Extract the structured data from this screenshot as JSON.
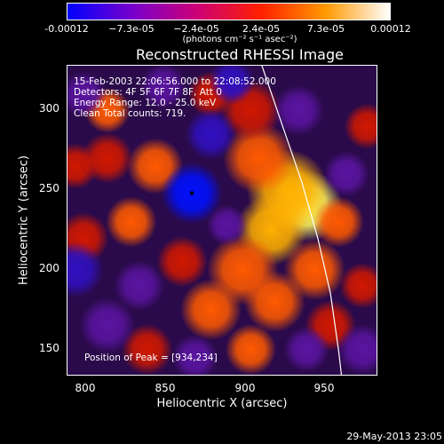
{
  "colorbar": {
    "ticks": [
      "-0.00012",
      "−7.3e-05",
      "−2.4e-05",
      "2.4e-05",
      "7.3e-05",
      "0.00012"
    ],
    "unit": "(photons cm⁻² s⁻¹ asec⁻²)",
    "colors": [
      "#0000ff",
      "#7700cc",
      "#cc0077",
      "#ff2000",
      "#ff9900",
      "#ffffff"
    ]
  },
  "info": {
    "line1": "15-Feb-2003 22:06:56.000 to 22:08:52.000",
    "line2": "Detectors: 4F 5F 6F 7F 8F, Att 0",
    "line3": "Energy Range: 12.0 - 25.0 keV",
    "line4": "Clean    Total counts: 719."
  },
  "peak": "Position of Peak = [934,234]",
  "timestamp": "29-May-2013 23:05",
  "chart_data": {
    "type": "heatmap",
    "title": "Reconstructed RHESSI Image",
    "xlabel": "Heliocentric X (arcsec)",
    "ylabel": "Heliocentric Y (arcsec)",
    "xlim": [
      790,
      985
    ],
    "ylim": [
      133,
      328
    ],
    "xticks": [
      "800",
      "850",
      "900",
      "950"
    ],
    "yticks": [
      "150",
      "200",
      "250",
      "300"
    ],
    "value_range": [
      -0.00012,
      0.00012
    ],
    "peak_position": [
      934,
      234
    ],
    "minimum_marker": [
      868,
      248
    ],
    "limb": [
      [
        912,
        328
      ],
      [
        925,
        290
      ],
      [
        937,
        255
      ],
      [
        947,
        220
      ],
      [
        955,
        185
      ],
      [
        960,
        150
      ],
      [
        962,
        133
      ]
    ],
    "blobs": [
      {
        "x": 940,
        "y": 240,
        "v": 1.0,
        "r": 14
      },
      {
        "x": 928,
        "y": 250,
        "v": 0.75,
        "r": 16
      },
      {
        "x": 918,
        "y": 225,
        "v": 0.7,
        "r": 14
      },
      {
        "x": 910,
        "y": 270,
        "v": 0.55,
        "r": 14
      },
      {
        "x": 905,
        "y": 300,
        "v": 0.4,
        "r": 12
      },
      {
        "x": 900,
        "y": 200,
        "v": 0.55,
        "r": 14
      },
      {
        "x": 920,
        "y": 180,
        "v": 0.5,
        "r": 12
      },
      {
        "x": 905,
        "y": 150,
        "v": 0.45,
        "r": 10
      },
      {
        "x": 945,
        "y": 200,
        "v": 0.55,
        "r": 12
      },
      {
        "x": 960,
        "y": 230,
        "v": 0.45,
        "r": 10
      },
      {
        "x": 955,
        "y": 165,
        "v": 0.4,
        "r": 10
      },
      {
        "x": 880,
        "y": 175,
        "v": 0.45,
        "r": 12
      },
      {
        "x": 862,
        "y": 205,
        "v": 0.4,
        "r": 10
      },
      {
        "x": 830,
        "y": 230,
        "v": 0.5,
        "r": 10
      },
      {
        "x": 845,
        "y": 265,
        "v": 0.45,
        "r": 11
      },
      {
        "x": 815,
        "y": 270,
        "v": 0.4,
        "r": 10
      },
      {
        "x": 815,
        "y": 300,
        "v": 0.45,
        "r": 9
      },
      {
        "x": 795,
        "y": 265,
        "v": 0.35,
        "r": 9
      },
      {
        "x": 840,
        "y": 150,
        "v": 0.4,
        "r": 10
      },
      {
        "x": 800,
        "y": 220,
        "v": 0.3,
        "r": 10
      },
      {
        "x": 880,
        "y": 310,
        "v": 0.3,
        "r": 9
      },
      {
        "x": 978,
        "y": 290,
        "v": 0.35,
        "r": 9
      },
      {
        "x": 975,
        "y": 190,
        "v": 0.3,
        "r": 9
      },
      {
        "x": 868,
        "y": 248,
        "v": -1.0,
        "r": 12
      },
      {
        "x": 880,
        "y": 285,
        "v": -0.8,
        "r": 10
      },
      {
        "x": 893,
        "y": 318,
        "v": -0.6,
        "r": 9
      },
      {
        "x": 795,
        "y": 200,
        "v": -0.8,
        "r": 11
      },
      {
        "x": 850,
        "y": 315,
        "v": -0.55,
        "r": 9
      },
      {
        "x": 835,
        "y": 190,
        "v": -0.5,
        "r": 10
      },
      {
        "x": 870,
        "y": 145,
        "v": -0.5,
        "r": 9
      },
      {
        "x": 935,
        "y": 300,
        "v": -0.5,
        "r": 10
      },
      {
        "x": 965,
        "y": 260,
        "v": -0.55,
        "r": 9
      },
      {
        "x": 975,
        "y": 150,
        "v": -0.5,
        "r": 10
      },
      {
        "x": 815,
        "y": 165,
        "v": -0.5,
        "r": 11
      },
      {
        "x": 890,
        "y": 228,
        "v": -0.45,
        "r": 8
      },
      {
        "x": 940,
        "y": 150,
        "v": -0.4,
        "r": 9
      },
      {
        "x": 800,
        "y": 310,
        "v": -0.45,
        "r": 9
      }
    ]
  }
}
